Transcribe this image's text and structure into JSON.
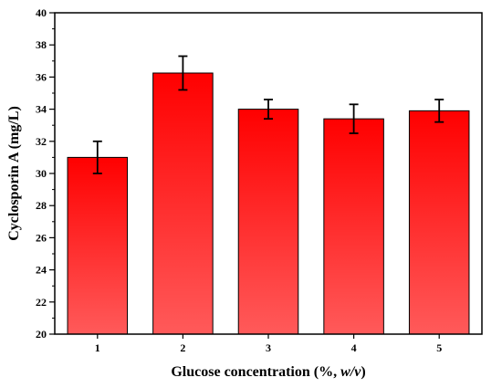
{
  "chart_data": {
    "type": "bar",
    "categories": [
      "1",
      "2",
      "3",
      "4",
      "5"
    ],
    "values": [
      31.0,
      36.25,
      34.0,
      33.4,
      33.9
    ],
    "errors": [
      1.0,
      1.05,
      0.6,
      0.9,
      0.7
    ],
    "title": "",
    "xlabel_main": "Glucose concentration (%, ",
    "xlabel_italic": "w/v",
    "xlabel_end": ")",
    "ylabel": "Cyclosporin A (mg/L)",
    "ylim": [
      20,
      40
    ],
    "yticks": [
      20,
      22,
      24,
      26,
      28,
      30,
      32,
      34,
      36,
      38,
      40
    ],
    "grid": false,
    "bar_gradient": [
      "#ff0000",
      "#ff5a5a"
    ]
  }
}
